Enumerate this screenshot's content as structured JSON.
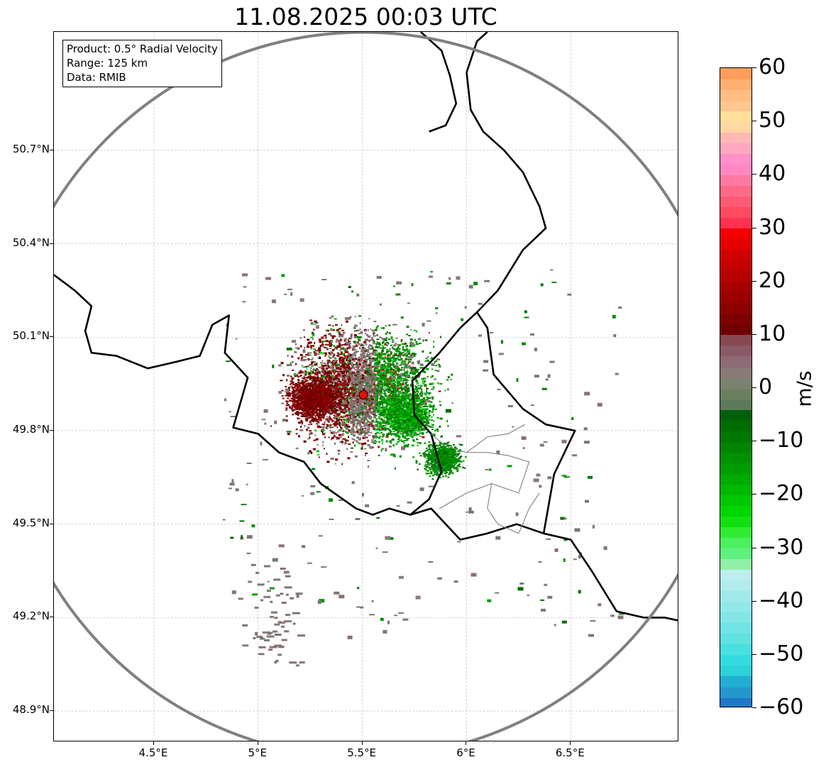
{
  "title": "11.08.2025 00:03 UTC",
  "info": {
    "product": "Product: 0.5° Radial Velocity",
    "range": "Range: 125 km",
    "data": "Data: RMIB"
  },
  "map_extent": {
    "lon": [
      4.02,
      7.02
    ],
    "lat": [
      48.8,
      51.08
    ]
  },
  "radar_site": {
    "lon": 5.505,
    "lat": 49.915,
    "range_km": 125
  },
  "y_ticks": [
    {
      "label": "50.7°N",
      "lat": 50.7
    },
    {
      "label": "50.4°N",
      "lat": 50.4
    },
    {
      "label": "50.1°N",
      "lat": 50.1
    },
    {
      "label": "49.8°N",
      "lat": 49.8
    },
    {
      "label": "49.5°N",
      "lat": 49.5
    },
    {
      "label": "49.2°N",
      "lat": 49.2
    },
    {
      "label": "48.9°N",
      "lat": 48.9
    }
  ],
  "x_ticks": [
    {
      "label": "4.5°E",
      "lon": 4.5
    },
    {
      "label": "5°E",
      "lon": 5.0
    },
    {
      "label": "5.5°E",
      "lon": 5.5
    },
    {
      "label": "6°E",
      "lon": 6.0
    },
    {
      "label": "6.5°E",
      "lon": 6.5
    }
  ],
  "colorbar": {
    "label": "m/s",
    "min": -60,
    "max": 60,
    "ticks": [
      {
        "label": "60",
        "value": 60
      },
      {
        "label": "50",
        "value": 50
      },
      {
        "label": "40",
        "value": 40
      },
      {
        "label": "30",
        "value": 30
      },
      {
        "label": "20",
        "value": 20
      },
      {
        "label": "10",
        "value": 10
      },
      {
        "label": "0",
        "value": 0
      },
      {
        "label": "−10",
        "value": -10
      },
      {
        "label": "−20",
        "value": -20
      },
      {
        "label": "−30",
        "value": -30
      },
      {
        "label": "−40",
        "value": -40
      },
      {
        "label": "−50",
        "value": -50
      },
      {
        "label": "−60",
        "value": -60
      }
    ],
    "stops": [
      {
        "v": -60,
        "c": "#1f78c8"
      },
      {
        "v": -58,
        "c": "#2596cc"
      },
      {
        "v": -56,
        "c": "#22aed2"
      },
      {
        "v": -54,
        "c": "#2cd2d8"
      },
      {
        "v": -52,
        "c": "#33dcde"
      },
      {
        "v": -50,
        "c": "#48e0e0"
      },
      {
        "v": -48,
        "c": "#5fe3e2"
      },
      {
        "v": -46,
        "c": "#70e4e4"
      },
      {
        "v": -44,
        "c": "#82e6e6"
      },
      {
        "v": -42,
        "c": "#92e8e8"
      },
      {
        "v": -40,
        "c": "#a0eaea"
      },
      {
        "v": -38,
        "c": "#b0ecec"
      },
      {
        "v": -36,
        "c": "#bcefef"
      },
      {
        "v": -34,
        "c": "#90f0a8"
      },
      {
        "v": -32,
        "c": "#60f080"
      },
      {
        "v": -30,
        "c": "#4cf060"
      },
      {
        "v": -28,
        "c": "#30ec30"
      },
      {
        "v": -26,
        "c": "#10e010"
      },
      {
        "v": -24,
        "c": "#00d600"
      },
      {
        "v": -22,
        "c": "#00c800"
      },
      {
        "v": -20,
        "c": "#00b800"
      },
      {
        "v": -18,
        "c": "#00aa00"
      },
      {
        "v": -16,
        "c": "#009e00"
      },
      {
        "v": -14,
        "c": "#009000"
      },
      {
        "v": -12,
        "c": "#008400"
      },
      {
        "v": -10,
        "c": "#007800"
      },
      {
        "v": -8,
        "c": "#006c00"
      },
      {
        "v": -6,
        "c": "#00600a"
      },
      {
        "v": -4,
        "c": "#5c7a5a"
      },
      {
        "v": -2,
        "c": "#6c8060"
      },
      {
        "v": 0,
        "c": "#7c8270"
      },
      {
        "v": 2,
        "c": "#8a7a76"
      },
      {
        "v": 4,
        "c": "#8c6a76"
      },
      {
        "v": 6,
        "c": "#8a5a66"
      },
      {
        "v": 8,
        "c": "#884850"
      },
      {
        "v": 10,
        "c": "#700000"
      },
      {
        "v": 12,
        "c": "#7e0000"
      },
      {
        "v": 14,
        "c": "#8c0000"
      },
      {
        "v": 16,
        "c": "#9a0000"
      },
      {
        "v": 18,
        "c": "#a80000"
      },
      {
        "v": 20,
        "c": "#b60000"
      },
      {
        "v": 22,
        "c": "#c40000"
      },
      {
        "v": 24,
        "c": "#d20000"
      },
      {
        "v": 26,
        "c": "#e40000"
      },
      {
        "v": 28,
        "c": "#f40000"
      },
      {
        "v": 30,
        "c": "#ff3050"
      },
      {
        "v": 32,
        "c": "#ff4a60"
      },
      {
        "v": 34,
        "c": "#ff5a74"
      },
      {
        "v": 36,
        "c": "#ff6a88"
      },
      {
        "v": 38,
        "c": "#ff7aa0"
      },
      {
        "v": 40,
        "c": "#ff88c4"
      },
      {
        "v": 42,
        "c": "#ff90c8"
      },
      {
        "v": 44,
        "c": "#ffa8c0"
      },
      {
        "v": 46,
        "c": "#ffb8b4"
      },
      {
        "v": 48,
        "c": "#ffd8a4"
      },
      {
        "v": 50,
        "c": "#ffe09a"
      },
      {
        "v": 52,
        "c": "#ffc890"
      },
      {
        "v": 54,
        "c": "#ffbe84"
      },
      {
        "v": 56,
        "c": "#ffb070"
      },
      {
        "v": 58,
        "c": "#ff9e5c"
      }
    ]
  },
  "borders": {
    "belgium_france_west": [
      [
        4.02,
        50.3
      ],
      [
        4.12,
        50.25
      ],
      [
        4.2,
        50.2
      ],
      [
        4.17,
        50.12
      ],
      [
        4.2,
        50.05
      ],
      [
        4.32,
        50.04
      ],
      [
        4.47,
        50.0
      ],
      [
        4.6,
        50.02
      ],
      [
        4.72,
        50.04
      ],
      [
        4.78,
        50.14
      ],
      [
        4.86,
        50.17
      ],
      [
        4.84,
        50.05
      ],
      [
        4.95,
        49.97
      ],
      [
        4.88,
        49.81
      ],
      [
        5.0,
        49.79
      ],
      [
        5.1,
        49.73
      ],
      [
        5.22,
        49.7
      ],
      [
        5.3,
        49.63
      ],
      [
        5.47,
        49.55
      ],
      [
        5.55,
        49.53
      ],
      [
        5.63,
        49.55
      ],
      [
        5.73,
        49.53
      ],
      [
        5.83,
        49.55
      ],
      [
        5.9,
        49.5
      ]
    ],
    "luxembourg": [
      [
        5.73,
        49.53
      ],
      [
        5.82,
        49.58
      ],
      [
        5.88,
        49.67
      ],
      [
        5.83,
        49.79
      ],
      [
        5.75,
        49.85
      ],
      [
        5.74,
        49.96
      ],
      [
        5.87,
        50.05
      ],
      [
        5.97,
        50.13
      ],
      [
        6.05,
        50.18
      ],
      [
        6.1,
        50.13
      ],
      [
        6.13,
        49.98
      ],
      [
        6.27,
        49.87
      ],
      [
        6.38,
        49.82
      ],
      [
        6.52,
        49.8
      ],
      [
        6.42,
        49.66
      ],
      [
        6.37,
        49.47
      ],
      [
        6.24,
        49.5
      ],
      [
        6.1,
        49.47
      ],
      [
        5.97,
        49.45
      ],
      [
        5.9,
        49.5
      ]
    ],
    "germany_west": [
      [
        6.05,
        50.18
      ],
      [
        6.15,
        50.25
      ],
      [
        6.27,
        50.38
      ],
      [
        6.38,
        50.45
      ],
      [
        6.35,
        50.52
      ],
      [
        6.27,
        50.63
      ],
      [
        6.18,
        50.7
      ],
      [
        6.08,
        50.76
      ],
      [
        6.02,
        50.83
      ],
      [
        6.0,
        50.95
      ],
      [
        6.05,
        51.05
      ],
      [
        6.1,
        51.08
      ]
    ],
    "germany_netherlands_north": [
      [
        5.78,
        51.08
      ],
      [
        5.88,
        51.02
      ],
      [
        5.92,
        50.94
      ],
      [
        5.95,
        50.85
      ],
      [
        5.9,
        50.78
      ],
      [
        5.82,
        50.76
      ]
    ],
    "france_germany_south": [
      [
        6.37,
        49.47
      ],
      [
        6.5,
        49.45
      ],
      [
        6.6,
        49.35
      ],
      [
        6.72,
        49.22
      ],
      [
        6.85,
        49.2
      ],
      [
        6.95,
        49.2
      ],
      [
        7.02,
        49.19
      ]
    ],
    "lorraine_internal": [
      [
        5.87,
        49.55
      ],
      [
        6.0,
        49.6
      ],
      [
        6.12,
        49.63
      ],
      [
        6.25,
        49.6
      ],
      [
        6.3,
        49.7
      ],
      [
        6.2,
        49.72
      ],
      [
        6.1,
        49.73
      ],
      [
        6.0,
        49.73
      ],
      [
        5.9,
        49.75
      ],
      [
        5.83,
        49.79
      ]
    ],
    "lorraine_internal_2": [
      [
        6.12,
        49.63
      ],
      [
        6.1,
        49.55
      ],
      [
        6.15,
        49.5
      ],
      [
        6.25,
        49.47
      ],
      [
        6.3,
        49.55
      ],
      [
        6.35,
        49.6
      ]
    ],
    "lorraine_internal_3": [
      [
        6.0,
        49.73
      ],
      [
        6.1,
        49.78
      ],
      [
        6.2,
        49.79
      ],
      [
        6.28,
        49.82
      ]
    ]
  }
}
